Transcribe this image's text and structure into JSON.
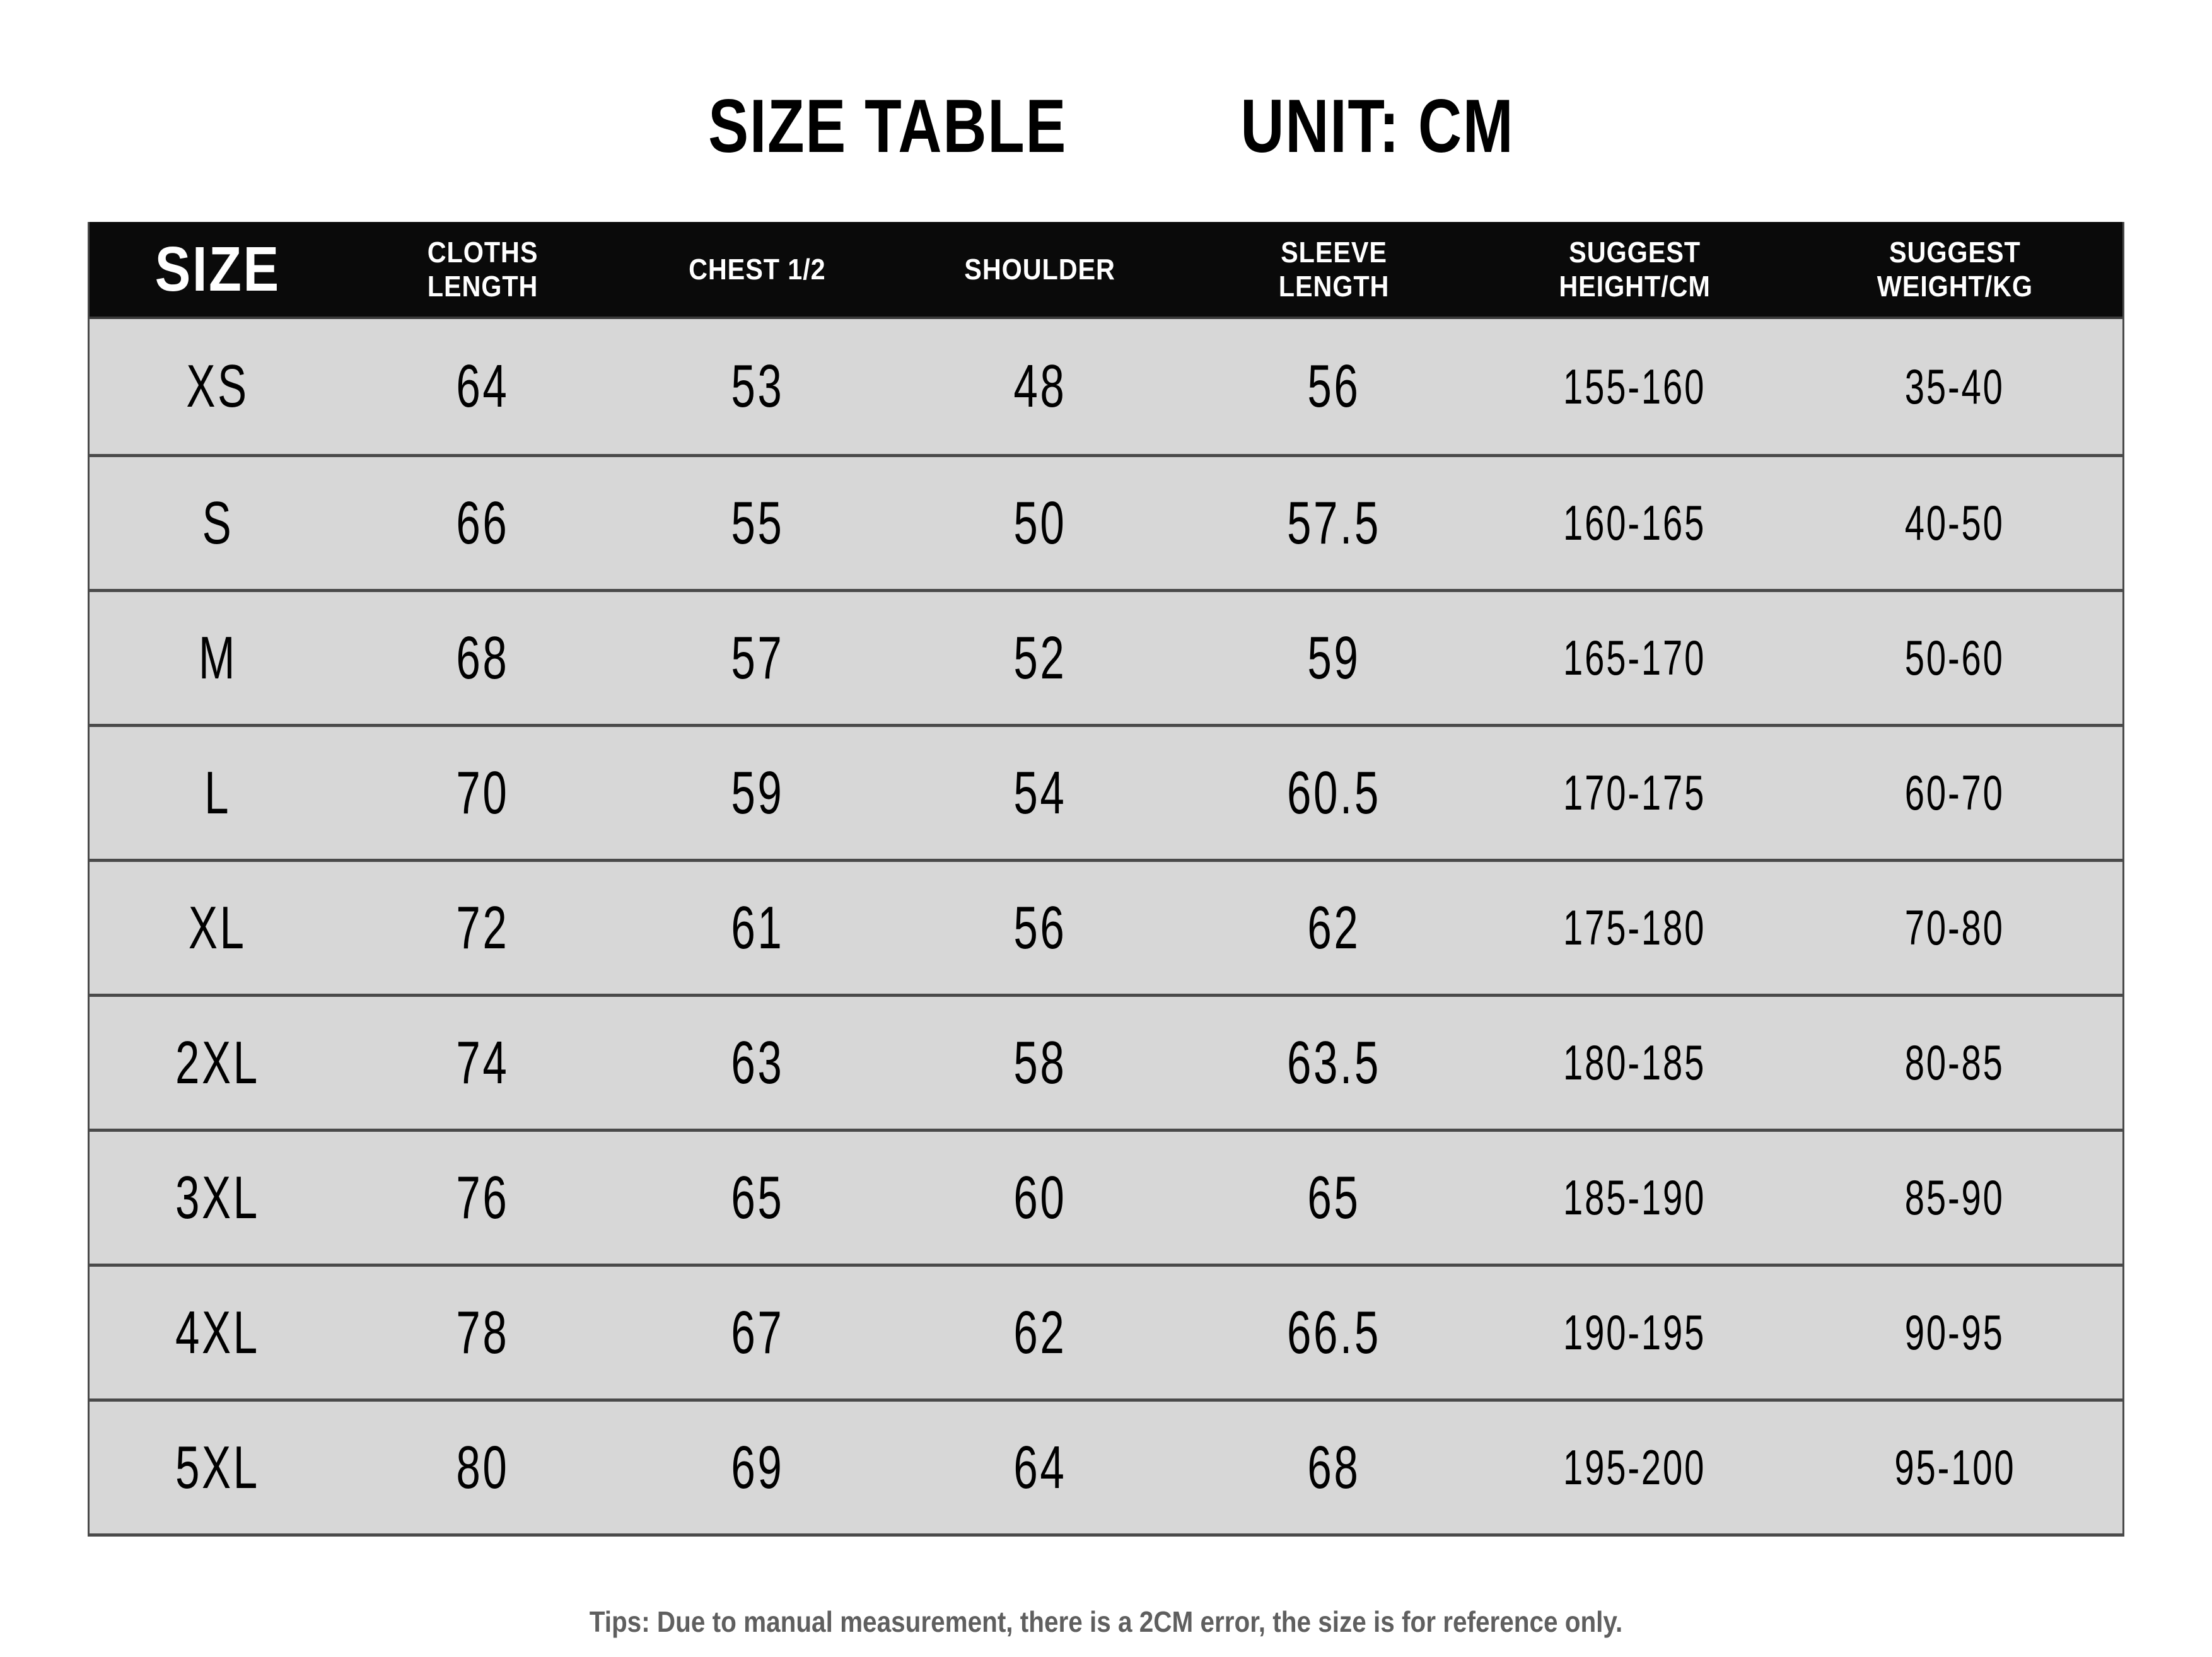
{
  "page": {
    "title_main": "SIZE TABLE",
    "title_unit": "UNIT: CM",
    "footer_tip": "Tips: Due to manual measurement, there is a 2CM error, the size is for reference only."
  },
  "colors": {
    "page_bg": "#ffffff",
    "header_bg": "#0a0a0a",
    "header_text": "#ffffff",
    "row_bg": "#d7d7d7",
    "separator": "#4a4a4a",
    "data_text": "#000000",
    "title_text": "#000000",
    "tip_text": "#5f5f5f"
  },
  "table": {
    "header_cells": [
      "SIZE",
      "CLOTHS\nLENGTH",
      "CHEST 1/2",
      "SHOULDER",
      "SLEEVE\nLENGTH",
      "SUGGEST\nHEIGHT/CM",
      "SUGGEST\nWEIGHT/KG"
    ]
  },
  "chart_data": {
    "type": "table",
    "title": "SIZE TABLE  UNIT: CM",
    "unit": "CM",
    "columns": [
      "SIZE",
      "CLOTHS LENGTH",
      "CHEST 1/2",
      "SHOULDER",
      "SLEEVE LENGTH",
      "SUGGEST HEIGHT/CM",
      "SUGGEST WEIGHT/KG"
    ],
    "rows": [
      [
        "XS",
        "64",
        "53",
        "48",
        "56",
        "155-160",
        "35-40"
      ],
      [
        "S",
        "66",
        "55",
        "50",
        "57.5",
        "160-165",
        "40-50"
      ],
      [
        "M",
        "68",
        "57",
        "52",
        "59",
        "165-170",
        "50-60"
      ],
      [
        "L",
        "70",
        "59",
        "54",
        "60.5",
        "170-175",
        "60-70"
      ],
      [
        "XL",
        "72",
        "61",
        "56",
        "62",
        "175-180",
        "70-80"
      ],
      [
        "2XL",
        "74",
        "63",
        "58",
        "63.5",
        "180-185",
        "80-85"
      ],
      [
        "3XL",
        "76",
        "65",
        "60",
        "65",
        "185-190",
        "85-90"
      ],
      [
        "4XL",
        "78",
        "67",
        "62",
        "66.5",
        "190-195",
        "90-95"
      ],
      [
        "5XL",
        "80",
        "69",
        "64",
        "68",
        "195-200",
        "95-100"
      ]
    ],
    "footnote": "Tips: Due to manual measurement, there is a 2CM error, the size is for reference only."
  }
}
